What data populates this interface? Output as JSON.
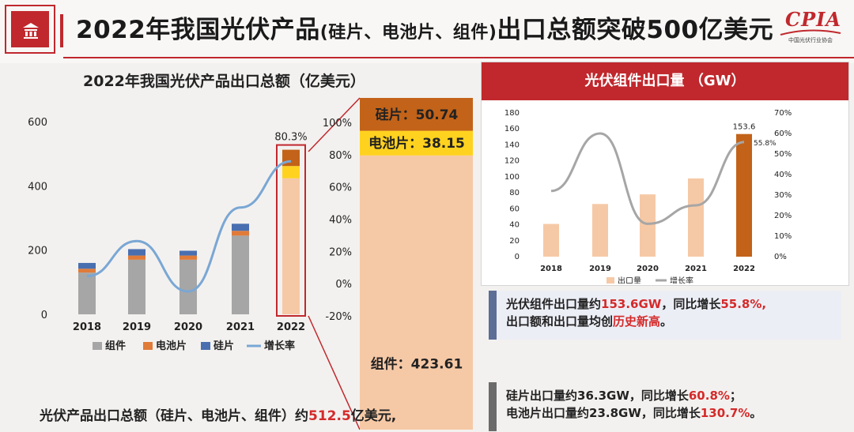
{
  "header": {
    "title_main": "2022年我国光伏产品",
    "title_paren": "(硅片、电池片、组件)",
    "title_tail": "出口总额突破500亿美元",
    "logo_text": "CPIA",
    "logo_sub": "中国光伏行业协会"
  },
  "colors": {
    "brand_red": "#c0282d",
    "module": "#a6a6a6",
    "cell": "#e07b39",
    "wafer": "#4a6fb0",
    "growth": "#7aa7d4",
    "module_2022": "#f6c9a6",
    "cell_2022": "#ffd21f",
    "wafer_2022": "#c26319",
    "right_bar": "#f6c9a6",
    "right_bar_2022": "#c26319",
    "right_line": "#a6a6a6",
    "note_bar": "#5b6e96",
    "note_bar2": "#6b6b6b"
  },
  "left_title": "2022年我国光伏产品出口总额（亿美元）",
  "chart_data": [
    {
      "type": "bar",
      "stacked": true,
      "title": "2022年我国光伏产品出口总额（亿美元）",
      "categories": [
        "2018",
        "2019",
        "2020",
        "2021",
        "2022"
      ],
      "series": [
        {
          "name": "组件",
          "values": [
            130,
            170,
            170,
            245,
            423.61
          ]
        },
        {
          "name": "电池片",
          "values": [
            12,
            13,
            13,
            15,
            38.15
          ]
        },
        {
          "name": "硅片",
          "values": [
            18,
            20,
            15,
            22,
            50.74
          ]
        }
      ],
      "line_series": {
        "name": "增长率",
        "values": [
          5,
          28,
          -5,
          50,
          80.3
        ]
      },
      "ylim": [
        0,
        600
      ],
      "yticks": [
        "0",
        "200",
        "400",
        "600"
      ],
      "y2ticks": [
        "-20%",
        "0%",
        "20%",
        "40%",
        "60%",
        "80%",
        "100%"
      ],
      "y2lim": [
        -20,
        100
      ],
      "annotation": "80.3%",
      "legend_position": "bottom",
      "grid": false
    },
    {
      "type": "bar",
      "stacked": true,
      "title": "",
      "categories": [
        "2022"
      ],
      "series": [
        {
          "name": "组件",
          "label": "组件：423.61",
          "values": [
            423.61
          ]
        },
        {
          "name": "电池片",
          "label": "电池片：38.15",
          "values": [
            38.15
          ]
        },
        {
          "name": "硅片",
          "label": "硅片：50.74",
          "values": [
            50.74
          ]
        }
      ]
    },
    {
      "type": "bar",
      "title": "光伏组件出口量 （GW）",
      "categories": [
        "2018",
        "2019",
        "2020",
        "2021",
        "2022"
      ],
      "series": [
        {
          "name": "出口量",
          "values": [
            41,
            66,
            78,
            98,
            153.6
          ]
        }
      ],
      "line_series": {
        "name": "增长率",
        "values": [
          32,
          60,
          16,
          25,
          55.8
        ]
      },
      "ylim": [
        0,
        180
      ],
      "yticks": [
        "0",
        "20",
        "40",
        "60",
        "80",
        "100",
        "120",
        "140",
        "160",
        "180"
      ],
      "y2lim": [
        0,
        70
      ],
      "y2ticks": [
        "0%",
        "10%",
        "20%",
        "30%",
        "40%",
        "50%",
        "60%",
        "70%"
      ],
      "data_labels": {
        "bar_2022": "153.6",
        "line_2022": "55.8%"
      },
      "legend_position": "bottom",
      "grid": false
    }
  ],
  "right_header": "光伏组件出口量 （GW）",
  "note1": {
    "l1_a": "光伏组件出口量约",
    "l1_b": "153.6GW",
    "l1_c": "，同比增长",
    "l1_d": "55.8%",
    "l1_e": ",",
    "l2_a": "出口额和出口量均创",
    "l2_b": "历史新高",
    "l2_c": "。"
  },
  "note2": {
    "l1_a": "硅片出口量约36.3GW，同比增长",
    "l1_b": "60.8%",
    "l1_c": "；",
    "l2_a": "电池片出口量约23.8GW，同比增长",
    "l2_b": "130.7%",
    "l2_c": "。"
  },
  "bottom": {
    "a": "光伏产品出口总额（硅片、电池片、组件）约",
    "b": "512.5",
    "c": "亿美元,"
  }
}
